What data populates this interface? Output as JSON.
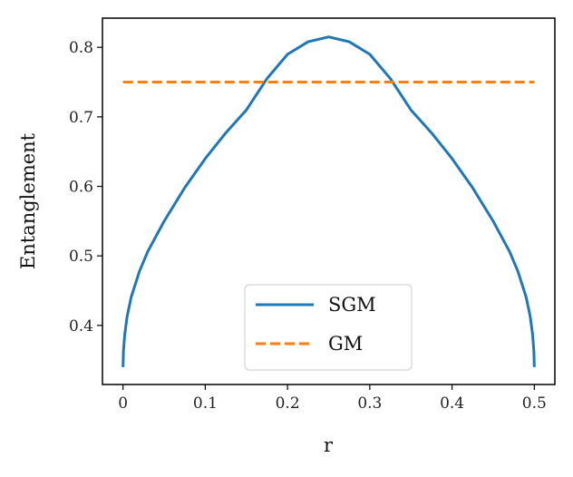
{
  "chart_data": {
    "type": "line",
    "title": "",
    "xlabel": "r",
    "ylabel": "Entanglement",
    "xlim": [
      -0.025,
      0.525
    ],
    "ylim": [
      0.315,
      0.842
    ],
    "xticks": [
      0,
      0.1,
      0.2,
      0.3,
      0.4,
      0.5
    ],
    "xtick_labels": [
      "0",
      "0.1",
      "0.2",
      "0.3",
      "0.4",
      "0.5"
    ],
    "yticks": [
      0.4,
      0.5,
      0.6,
      0.7,
      0.8
    ],
    "ytick_labels": [
      "0.4",
      "0.5",
      "0.6",
      "0.7",
      "0.8"
    ],
    "grid": false,
    "legend_position": "bottom-center",
    "series": [
      {
        "name": "SGM",
        "color": "#1f77b4",
        "style": "solid",
        "x": [
          0,
          0.0005,
          0.002,
          0.005,
          0.01,
          0.02,
          0.03,
          0.05,
          0.075,
          0.1,
          0.125,
          0.15,
          0.175,
          0.2,
          0.225,
          0.25,
          0.275,
          0.3,
          0.325,
          0.35,
          0.375,
          0.4,
          0.425,
          0.45,
          0.47,
          0.48,
          0.49,
          0.495,
          0.498,
          0.4995,
          0.5
        ],
        "y": [
          0.34,
          0.363,
          0.386,
          0.413,
          0.441,
          0.478,
          0.506,
          0.55,
          0.598,
          0.64,
          0.677,
          0.71,
          0.755,
          0.79,
          0.808,
          0.815,
          0.808,
          0.79,
          0.755,
          0.71,
          0.677,
          0.64,
          0.598,
          0.55,
          0.506,
          0.478,
          0.441,
          0.413,
          0.386,
          0.363,
          0.34
        ]
      },
      {
        "name": "GM",
        "color": "#ff7f0e",
        "style": "dashed",
        "x": [
          0,
          0.5
        ],
        "y": [
          0.75,
          0.75
        ]
      }
    ]
  }
}
